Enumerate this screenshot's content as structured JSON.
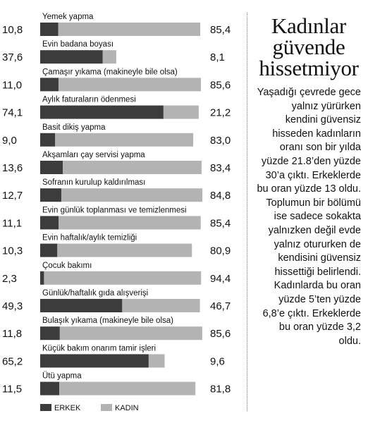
{
  "chart_data": {
    "type": "bar",
    "orientation": "horizontal",
    "stacked": true,
    "xlim": [
      0,
      100
    ],
    "grid": false,
    "legend_position": "bottom-left",
    "categories": [
      "Yemek yapma",
      "Evin badana boyası",
      "Çamaşır yıkama (makineyle bile olsa)",
      "Aylık faturaların ödenmesi",
      "Basit dikiş yapma",
      "Akşamları çay servisi yapma",
      "Sofranın kurulup kaldırılması",
      "Evin günlük toplanması ve temizlenmesi",
      "Evin haftalık/aylık temizliği",
      "Çocuk bakımı",
      "Günlük/haftalık gıda alışverişi",
      "Bulaşık yıkama (makineyle bile olsa)",
      "Küçük bakım onarım tamir işleri",
      "Ütü yapma"
    ],
    "series": [
      {
        "name": "ERKEK",
        "color": "#3c3c3c",
        "values": [
          10.8,
          37.6,
          11.0,
          74.1,
          9.0,
          13.6,
          12.7,
          11.1,
          10.3,
          2.3,
          49.3,
          11.8,
          65.2,
          11.5
        ],
        "labels": [
          "10,8",
          "37,6",
          "11,0",
          "74,1",
          "9,0",
          "13,6",
          "12,7",
          "11,1",
          "10,3",
          "2,3",
          "49,3",
          "11,8",
          "65,2",
          "11,5"
        ]
      },
      {
        "name": "KADIN",
        "color": "#b3b3b3",
        "values": [
          85.4,
          8.1,
          85.6,
          21.2,
          83.0,
          83.4,
          84.8,
          85.4,
          80.9,
          94.4,
          46.7,
          85.6,
          9.6,
          81.8
        ],
        "labels": [
          "85,4",
          "8,1",
          "85,6",
          "21,2",
          "83,0",
          "83,4",
          "84,8",
          "85,4",
          "80,9",
          "94,4",
          "46,7",
          "85,6",
          "9,6",
          "81,8"
        ]
      }
    ]
  },
  "article": {
    "headline": "Kadınlar güvende hissetmiyor",
    "body": "Yaşadığı çevrede gece yalnız yürürken kendini güvensiz hisseden kadınların oranı son bir yılda yüzde 21.8’den yüzde 30’a çıktı. Erkeklerde bu oran yüzde 13 oldu. Toplumun bir bölümü ise sadece sokakta yalnızken değil evde yalnız otururken de kendisini güvensiz hissettiği belirlendi. Kadınlarda bu oran yüzde 5’ten yüzde 6,8’e çıktı. Erkeklerde bu oran yüzde 3,2 oldu."
  }
}
